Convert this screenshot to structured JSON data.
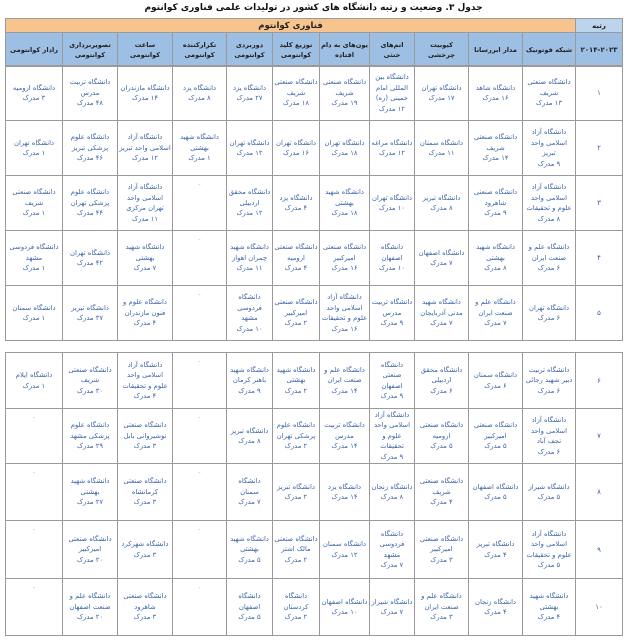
{
  "title": "جدول ۳. وضعیت و رتبه دانشگاه های کشور در تولیدات علمی فناوری کوانتوم",
  "header": {
    "rank_label": "رتبه",
    "years": "۲۰۱۴-۲۰۲۳",
    "group": "فناوری کوانتوم",
    "columns": [
      "شبکه فوتونیک",
      "مدار ابررسانا",
      "کیوبیت چرخشی",
      "اتم‌های خنثی",
      "یون‌های به دام افتاده",
      "توزیع کلید کوانتومی",
      "دوربردی کوانتومی",
      "تکرارکننده کوانتومی",
      "ساعت کوانتومی",
      "تصویربرداری کوانتومی",
      "رادار کوانتومی"
    ]
  },
  "colors": {
    "group_band": "#f8c48e",
    "column_header": "#9dbfe4",
    "cell_text": "#3a64a8"
  },
  "rows": [
    {
      "rank": "۱",
      "cells": [
        {
          "u": "دانشگاه صنعتی شریف",
          "n": "۱۳ مدرک"
        },
        {
          "u": "دانشگاه شاهد",
          "n": "۱۶ مدرک"
        },
        {
          "u": "دانشگاه تهران",
          "n": "۱۷ مدرک"
        },
        {
          "u": "دانشگاه بین المللی امام خمینی (ره)",
          "n": "۱۲ مدرک"
        },
        {
          "u": "دانشگاه صنعتی شریف",
          "n": "۱۹ مدرک"
        },
        {
          "u": "دانشگاه صنعتی شریف",
          "n": "۱۸ مدرک"
        },
        {
          "u": "دانشگاه یزد",
          "n": "۲۷ مدرک"
        },
        {
          "u": "دانشگاه یزد",
          "n": "۸ مدرک"
        },
        {
          "u": "دانشگاه مازندران",
          "n": "۱۴ مدرک"
        },
        {
          "u": "دانشگاه تربیت مدرس",
          "n": "۴۸ مدرک"
        },
        {
          "u": "دانشگاه ارومیه",
          "n": "۳ مدرک"
        }
      ]
    },
    {
      "rank": "۲",
      "cells": [
        {
          "u": "دانشگاه آزاد اسلامی واحد تبریز",
          "n": "۹ مدرک"
        },
        {
          "u": "دانشگاه صنعتی شریف",
          "n": "۱۴ مدرک"
        },
        {
          "u": "دانشگاه سمنان",
          "n": "۱۱ مدرک"
        },
        {
          "u": "دانشگاه مراغه",
          "n": "۱۲ مدرک"
        },
        {
          "u": "دانشگاه تهران",
          "n": "۱۸ مدرک"
        },
        {
          "u": "دانشگاه تهران",
          "n": "۱۶ مدرک"
        },
        {
          "u": "دانشگاه تهران",
          "n": "۱۲ مدرک"
        },
        {
          "u": "دانشگاه شهید بهشتی",
          "n": "۱ مدرک"
        },
        {
          "u": "دانشگاه آزاد اسلامی واحد تبریز",
          "n": "۱۲ مدرک"
        },
        {
          "u": "دانشگاه علوم پزشکی تبریز",
          "n": "۴۶ مدرک"
        },
        {
          "u": "دانشگاه تهران",
          "n": "۱ مدرک"
        }
      ]
    },
    {
      "rank": "۳",
      "cells": [
        {
          "u": "دانشگاه آزاد اسلامی واحد علوم و تحقیقات",
          "n": "۸ مدرک"
        },
        {
          "u": "دانشگاه صنعتی شاهرود",
          "n": "۹ مدرک"
        },
        {
          "u": "دانشگاه تبریز",
          "n": "۸ مدرک"
        },
        {
          "u": "دانشگاه تهران",
          "n": "۱۰ مدرک"
        },
        {
          "u": "دانشگاه شهید بهشتی",
          "n": "۱۸ مدرک"
        },
        {
          "u": "دانشگاه یزد",
          "n": "۴ مدرک"
        },
        {
          "u": "دانشگاه محقق اردبیلی",
          "n": "۱۲ مدرک"
        },
        {
          "u": "-"
        },
        {
          "u": "دانشگاه آزاد اسلامی واحد تهران مرکزی",
          "n": "۱۱ مدرک"
        },
        {
          "u": "دانشگاه علوم پزشکی تهران",
          "n": "۴۴ مدرک"
        },
        {
          "u": "دانشگاه صنعتی شریف",
          "n": "۱ مدرک"
        }
      ]
    },
    {
      "rank": "۴",
      "cells": [
        {
          "u": "دانشگاه علم و صنعت ایران",
          "n": "۶ مدرک"
        },
        {
          "u": "دانشگاه شهید بهشتی",
          "n": "۸ مدرک"
        },
        {
          "u": "دانشگاه اصفهان",
          "n": "۷ مدرک"
        },
        {
          "u": "دانشگاه اصفهان",
          "n": "۱۰ مدرک"
        },
        {
          "u": "دانشگاه صنعتی امیرکبیر",
          "n": "۱۶ مدرک"
        },
        {
          "u": "دانشگاه صنعتی ارومیه",
          "n": "۴ مدرک"
        },
        {
          "u": "دانشگاه شهید چمران اهواز",
          "n": "۱۱ مدرک"
        },
        {
          "u": "-"
        },
        {
          "u": "دانشگاه شهید بهشتی",
          "n": "۷ مدرک"
        },
        {
          "u": "دانشگاه تهران",
          "n": "۴۲ مدرک"
        },
        {
          "u": "دانشگاه فردوسی مشهد",
          "n": "۱ مدرک"
        }
      ]
    },
    {
      "rank": "۵",
      "cells": [
        {
          "u": "دانشگاه تهران",
          "n": "۶ مدرک"
        },
        {
          "u": "دانشگاه علم و صنعت ایران",
          "n": "۷ مدرک"
        },
        {
          "u": "دانشگاه شهید مدنی آذربایجان",
          "n": "۷ مدرک"
        },
        {
          "u": "دانشگاه تربیت مدرس",
          "n": "۹ مدرک"
        },
        {
          "u": "دانشگاه آزاد اسلامی واحد علوم و تحقیقات",
          "n": "۱۶ مدرک"
        },
        {
          "u": "دانشگاه صنعتی امیرکبیر",
          "n": "۲ مدرک"
        },
        {
          "u": "دانشگاه فردوسی مشهد",
          "n": "۱۰ مدرک"
        },
        {
          "u": "-"
        },
        {
          "u": "دانشگاه علوم و فنون مازندران",
          "n": "۴ مدرک"
        },
        {
          "u": "دانشگاه تبریز",
          "n": "۳۷ مدرک"
        },
        {
          "u": "دانشگاه سمنان",
          "n": "۱ مدرک"
        }
      ]
    },
    {
      "rank": "۶",
      "cells": [
        {
          "u": "دانشگاه تربیت دبیر شهید رجائی",
          "n": "۶ مدرک"
        },
        {
          "u": "دانشگاه سمنان",
          "n": "۶ مدرک"
        },
        {
          "u": "دانشگاه محقق اردبیلی",
          "n": "۶ مدرک"
        },
        {
          "u": "دانشگاه صنعتی اصفهان",
          "n": "۹ مدرک"
        },
        {
          "u": "دانشگاه علم و صنعت ایران",
          "n": "۱۴ مدرک"
        },
        {
          "u": "دانشگاه شهید بهشتی",
          "n": "۲ مدرک"
        },
        {
          "u": "دانشگاه شهید باهنر کرمان",
          "n": "۹ مدرک"
        },
        {
          "u": "-"
        },
        {
          "u": "دانشگاه آزاد اسلامی واحد علوم و تحقیقات",
          "n": "۴ مدرک"
        },
        {
          "u": "دانشگاه صنعتی شریف",
          "n": "۳۰ مدرک"
        },
        {
          "u": "دانشگاه ایلام",
          "n": "۱ مدرک"
        }
      ]
    },
    {
      "rank": "۷",
      "cells": [
        {
          "u": "دانشگاه آزاد اسلامی واحد نجف آباد",
          "n": "۶ مدرک"
        },
        {
          "u": "دانشگاه صنعتی امیرکبیر",
          "n": "۵ مدرک"
        },
        {
          "u": "دانشگاه صنعتی ارومیه",
          "n": "۵ مدرک"
        },
        {
          "u": "دانشگاه آزاد اسلامی واحد علوم و تحقیقات",
          "n": "۹ مدرک"
        },
        {
          "u": "دانشگاه تربیت مدرس",
          "n": "۱۴ مدرک"
        },
        {
          "u": "دانشگاه علوم پزشکی تهران",
          "n": "۲ مدرک"
        },
        {
          "u": "دانشگاه تبریز",
          "n": "۸ مدرک"
        },
        {
          "u": "-"
        },
        {
          "u": "دانشگاه صنعتی نوشیروانی بابل",
          "n": "۳ مدرک"
        },
        {
          "u": "دانشگاه علوم پزشکی مشهد",
          "n": "۲۹ مدرک"
        },
        {
          "u": "-"
        }
      ]
    },
    {
      "rank": "۸",
      "cells": [
        {
          "u": "دانشگاه شیراز",
          "n": "۵ مدرک"
        },
        {
          "u": "دانشگاه اصفهان",
          "n": "۵ مدرک"
        },
        {
          "u": "دانشگاه صنعتی شریف",
          "n": "۴ مدرک"
        },
        {
          "u": "دانشگاه زنجان",
          "n": "۸ مدرک"
        },
        {
          "u": "دانشگاه یزد",
          "n": "۱۴ مدرک"
        },
        {
          "u": "دانشگاه تبریز",
          "n": "۲ مدرک"
        },
        {
          "u": "دانشگاه سمنان",
          "n": "۷ مدرک"
        },
        {
          "u": "-"
        },
        {
          "u": "دانشگاه صنعتی کرمانشاه",
          "n": "۳ مدرک"
        },
        {
          "u": "دانشگاه شهید بهشتی",
          "n": "۲۷ مدرک"
        },
        {
          "u": "-"
        }
      ]
    },
    {
      "rank": "۹",
      "cells": [
        {
          "u": "دانشگاه آزاد اسلامی واحد علوم و تحقیقات",
          "n": "۵ مدرک"
        },
        {
          "u": "دانشگاه تبریز",
          "n": "۴ مدرک"
        },
        {
          "u": "دانشگاه صنعتی امیرکبیر",
          "n": "۳ مدرک"
        },
        {
          "u": "دانشگاه فردوسی مشهد",
          "n": "۷ مدرک"
        },
        {
          "u": "دانشگاه سمنان",
          "n": "۱۲ مدرک"
        },
        {
          "u": "دانشگاه صنعتی مالک اشتر",
          "n": "۲ مدرک"
        },
        {
          "u": "دانشگاه شهید بهشتی",
          "n": "۵ مدرک"
        },
        {
          "u": "-"
        },
        {
          "u": "دانشگاه شهرکرد",
          "n": "۳ مدرک"
        },
        {
          "u": "دانشگاه صنعتی امیرکبیر",
          "n": "۲۰ مدرک"
        },
        {
          "u": "-"
        }
      ]
    },
    {
      "rank": "۱۰",
      "cells": [
        {
          "u": "دانشگاه شهید بهشتی",
          "n": "۴ مدرک"
        },
        {
          "u": "دانشگاه زنجان",
          "n": "۴ مدرک"
        },
        {
          "u": "دانشگاه علم و صنعت ایران",
          "n": "۳ مدرک"
        },
        {
          "u": "دانشگاه شیراز",
          "n": "۷ مدرک"
        },
        {
          "u": "دانشگاه اصفهان",
          "n": "۱۰ مدرک"
        },
        {
          "u": "دانشگاه کردستان",
          "n": "۲ مدرک"
        },
        {
          "u": "دانشگاه اصفهان",
          "n": "۵ مدرک"
        },
        {
          "u": "-"
        },
        {
          "u": "دانشگاه صنعتی شاهرود",
          "n": "۳ مدرک"
        },
        {
          "u": "دانشگاه علم و صنعت اصفهان",
          "n": "۲۰ مدرک"
        },
        {
          "u": "-"
        }
      ]
    }
  ]
}
